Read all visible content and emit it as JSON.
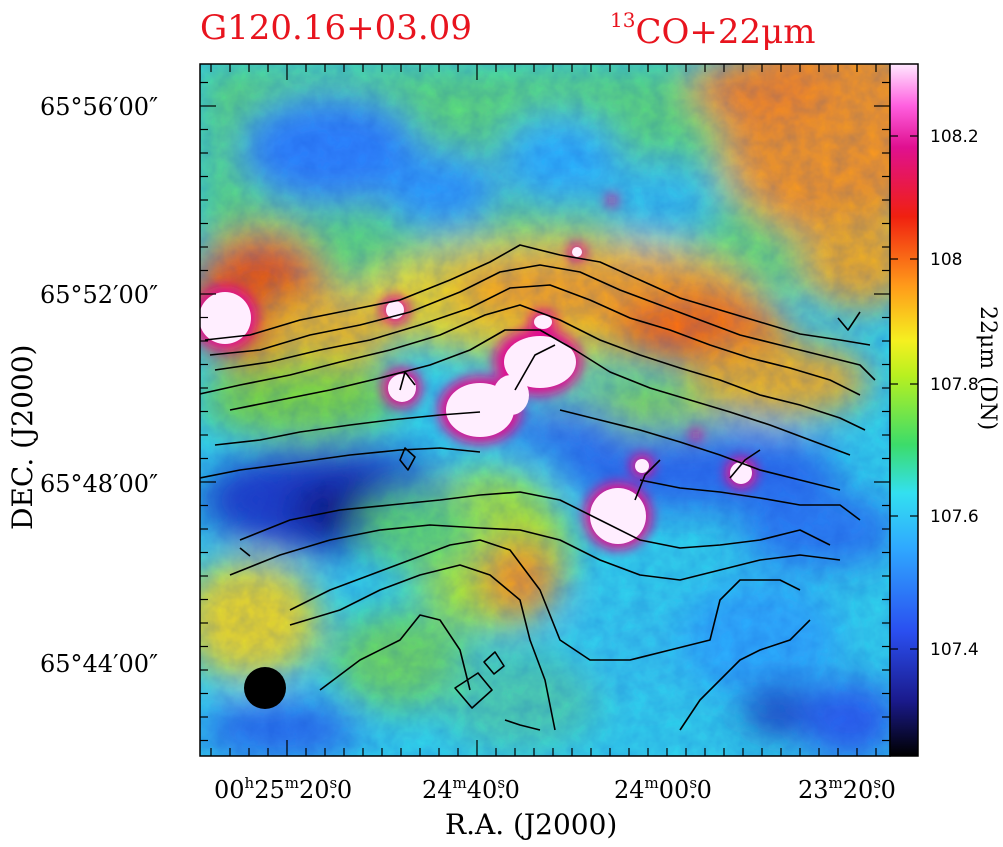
{
  "figure": {
    "title_left": "G120.16+03.09",
    "title_right_sup": "13",
    "title_right_main": "CO+22μm",
    "xlabel": "R.A. (J2000)",
    "ylabel": "DEC. (J2000)",
    "colorbar_label": "22μm (DN)"
  },
  "colors": {
    "title": "#e8141e",
    "contour": "#000000",
    "beam": "#000000"
  },
  "chart_data": {
    "type": "heatmap",
    "title": "G120.16+03.09",
    "subtitle": "13CO+22μm",
    "xlabel": "R.A. (J2000)",
    "ylabel": "DEC. (J2000)",
    "x_ticks": [
      {
        "h": "00",
        "m": "25",
        "s": "20",
        "f": "0"
      },
      {
        "m": "24",
        "s": "40",
        "f": "0"
      },
      {
        "m": "24",
        "s": "00",
        "f": "0"
      },
      {
        "m": "23",
        "s": "20",
        "f": "0"
      }
    ],
    "y_ticks": [
      "65°56′00″",
      "65°52′00″",
      "65°48′00″",
      "65°44′00″"
    ],
    "colorbar": {
      "label": "22μm (DN)",
      "range": [
        107.23,
        108.29
      ],
      "ticks": [
        "107.4",
        "107.6",
        "107.8",
        "108",
        "108.2"
      ],
      "colormap": [
        "#000000",
        "#1a1a8c",
        "#2a4ff0",
        "#2fa8ff",
        "#33e0f0",
        "#3cdc6a",
        "#b8f020",
        "#f5f020",
        "#ff9a1a",
        "#f02010",
        "#e01090",
        "#ff60e0",
        "#ffe8ff"
      ]
    },
    "overlay": "13CO integrated intensity contours",
    "beam": "filled circle, lower-left"
  }
}
